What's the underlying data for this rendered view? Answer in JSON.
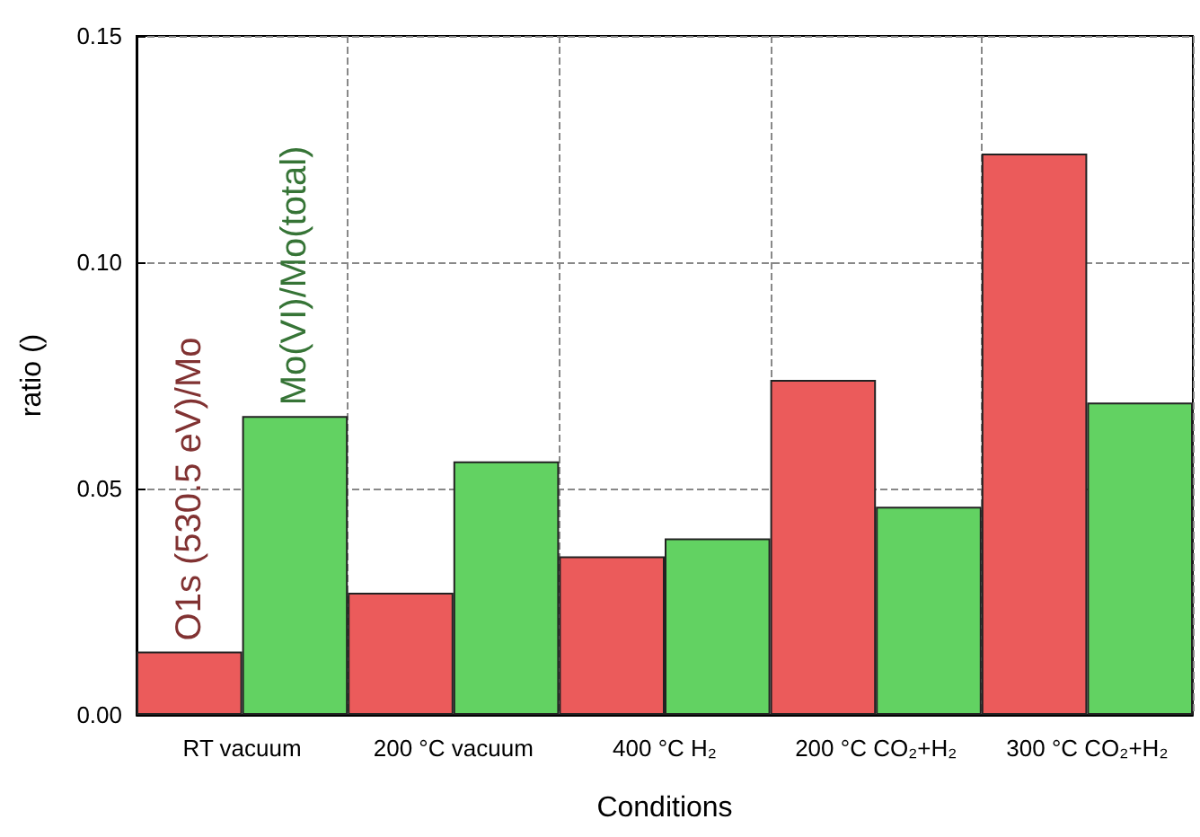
{
  "chart_data": {
    "type": "bar",
    "xlabel": "Conditions",
    "ylabel": "ratio ()",
    "categories": [
      "RT vacuum",
      "200 °C vacuum",
      "400 °C H₂",
      "200 °C CO₂+H₂",
      "300 °C CO₂+H₂"
    ],
    "series": [
      {
        "name": "O1s (530.5 eV)/Mo",
        "color": "#eb5b5b",
        "values": [
          0.014,
          0.027,
          0.035,
          0.074,
          0.124
        ]
      },
      {
        "name": "Mo(VI)/Mo(total)",
        "color": "#62d262",
        "values": [
          0.066,
          0.056,
          0.039,
          0.046,
          0.069
        ]
      }
    ],
    "ylim": [
      0,
      0.15
    ],
    "yticks": [
      {
        "value": 0,
        "label": "0.00"
      },
      {
        "value": 0.05,
        "label": "0.05"
      },
      {
        "value": 0.1,
        "label": "0.10"
      },
      {
        "value": 0.15,
        "label": "0.15"
      }
    ],
    "grid": true,
    "legend": false
  }
}
